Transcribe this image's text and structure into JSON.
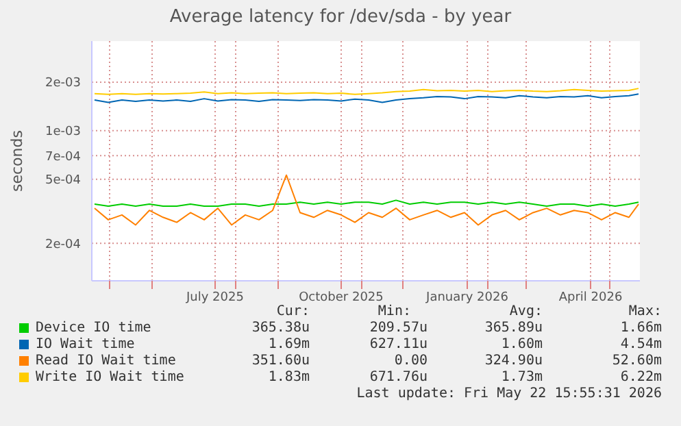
{
  "chart_data": {
    "type": "line",
    "title": "Average latency for /dev/sda - by year",
    "ylabel": "seconds",
    "log": "y",
    "grid": true,
    "legend": "bottom",
    "marker": "none",
    "line_style": "solid",
    "x": [
      "2025-04-20",
      "2025-04-30",
      "2025-05-10",
      "2025-05-20",
      "2025-05-30",
      "2025-06-09",
      "2025-06-19",
      "2025-06-29",
      "2025-07-09",
      "2025-07-19",
      "2025-07-29",
      "2025-08-08",
      "2025-08-18",
      "2025-08-28",
      "2025-09-07",
      "2025-09-17",
      "2025-09-27",
      "2025-10-07",
      "2025-10-17",
      "2025-10-27",
      "2025-11-06",
      "2025-11-16",
      "2025-11-26",
      "2025-12-06",
      "2025-12-16",
      "2025-12-26",
      "2026-01-05",
      "2026-01-15",
      "2026-01-25",
      "2026-02-04",
      "2026-02-14",
      "2026-02-24",
      "2026-03-06",
      "2026-03-16",
      "2026-03-26",
      "2026-04-05",
      "2026-04-15",
      "2026-04-25",
      "2026-05-05",
      "2026-05-15",
      "2026-05-22"
    ],
    "series": [
      {
        "name": "Device IO time",
        "color": "#00cc00",
        "values": [
          0.00035,
          0.00034,
          0.00035,
          0.00034,
          0.00035,
          0.00034,
          0.00034,
          0.00035,
          0.00034,
          0.00034,
          0.00035,
          0.00035,
          0.00034,
          0.00035,
          0.00035,
          0.00036,
          0.00035,
          0.00036,
          0.00035,
          0.00036,
          0.00036,
          0.00035,
          0.00037,
          0.00035,
          0.00036,
          0.00035,
          0.00036,
          0.00036,
          0.00035,
          0.00036,
          0.00035,
          0.00036,
          0.00035,
          0.00034,
          0.00035,
          0.00035,
          0.00034,
          0.00035,
          0.00034,
          0.00035,
          0.00036
        ]
      },
      {
        "name": "IO Wait time",
        "color": "#0066b3",
        "values": [
          0.00155,
          0.0015,
          0.00155,
          0.00152,
          0.00155,
          0.00153,
          0.00155,
          0.00152,
          0.00158,
          0.00153,
          0.00156,
          0.00155,
          0.00152,
          0.00156,
          0.00155,
          0.00154,
          0.00156,
          0.00155,
          0.00153,
          0.00157,
          0.00155,
          0.0015,
          0.00155,
          0.00158,
          0.0016,
          0.00163,
          0.00162,
          0.00158,
          0.00163,
          0.00162,
          0.0016,
          0.00165,
          0.00162,
          0.0016,
          0.00163,
          0.00162,
          0.00165,
          0.0016,
          0.00163,
          0.00165,
          0.00169
        ]
      },
      {
        "name": "Read IO Wait time",
        "color": "#ff8000",
        "values": [
          0.00033,
          0.00028,
          0.0003,
          0.00026,
          0.00032,
          0.00029,
          0.00027,
          0.00031,
          0.00028,
          0.00033,
          0.00026,
          0.0003,
          0.00028,
          0.00032,
          0.00053,
          0.00031,
          0.00029,
          0.00032,
          0.0003,
          0.00027,
          0.00031,
          0.00029,
          0.00033,
          0.00028,
          0.0003,
          0.00032,
          0.00029,
          0.00031,
          0.00026,
          0.0003,
          0.00032,
          0.00028,
          0.00031,
          0.00033,
          0.0003,
          0.00032,
          0.00031,
          0.00028,
          0.00031,
          0.00029,
          0.00035
        ]
      },
      {
        "name": "Write IO Wait time",
        "color": "#ffcc00",
        "values": [
          0.0017,
          0.00168,
          0.0017,
          0.00168,
          0.0017,
          0.00169,
          0.0017,
          0.00171,
          0.00174,
          0.0017,
          0.00172,
          0.0017,
          0.00171,
          0.00172,
          0.0017,
          0.00171,
          0.00172,
          0.0017,
          0.00171,
          0.00168,
          0.0017,
          0.00172,
          0.00175,
          0.00176,
          0.0018,
          0.00177,
          0.00178,
          0.00176,
          0.00178,
          0.00175,
          0.00177,
          0.00178,
          0.00176,
          0.00175,
          0.00177,
          0.0018,
          0.00178,
          0.00176,
          0.00177,
          0.00178,
          0.00183
        ]
      }
    ],
    "xlim": [
      "2025-04-18",
      "2026-05-23"
    ],
    "xticks": [
      {
        "value": "2025-05-01",
        "label": null
      },
      {
        "value": "2025-06-01",
        "label": null
      },
      {
        "value": "2025-07-17",
        "label": "July 2025"
      },
      {
        "value": "2025-08-01",
        "label": null
      },
      {
        "value": "2025-09-01",
        "label": null
      },
      {
        "value": "2025-10-17",
        "label": "October 2025"
      },
      {
        "value": "2025-11-01",
        "label": null
      },
      {
        "value": "2025-12-01",
        "label": null
      },
      {
        "value": "2026-01-17",
        "label": "January 2026"
      },
      {
        "value": "2026-02-01",
        "label": null
      },
      {
        "value": "2026-03-01",
        "label": null
      },
      {
        "value": "2026-04-17",
        "label": "April 2026"
      },
      {
        "value": "2026-05-01",
        "label": null
      }
    ],
    "ylim": [
      0.000117,
      0.0036
    ],
    "yticks": [
      {
        "value": 0.0002,
        "label": "2e-04"
      },
      {
        "value": 0.0005,
        "label": "5e-04"
      },
      {
        "value": 0.0007,
        "label": "7e-04"
      },
      {
        "value": 0.001,
        "label": "1e-03"
      },
      {
        "value": 0.002,
        "label": "2e-03"
      }
    ],
    "annotations": [
      "Cur:",
      "Min:",
      "Avg:",
      "Max:",
      "365.38u",
      "209.57u",
      "365.89u",
      "1.66m",
      "1.69m",
      "627.11u",
      "1.60m",
      "4.54m",
      "351.60u",
      "0.00",
      "324.90u",
      "52.60m",
      "1.83m",
      "671.76u",
      "1.73m",
      "6.22m",
      "Last update: Fri May 22 15:55:31 2026"
    ]
  }
}
